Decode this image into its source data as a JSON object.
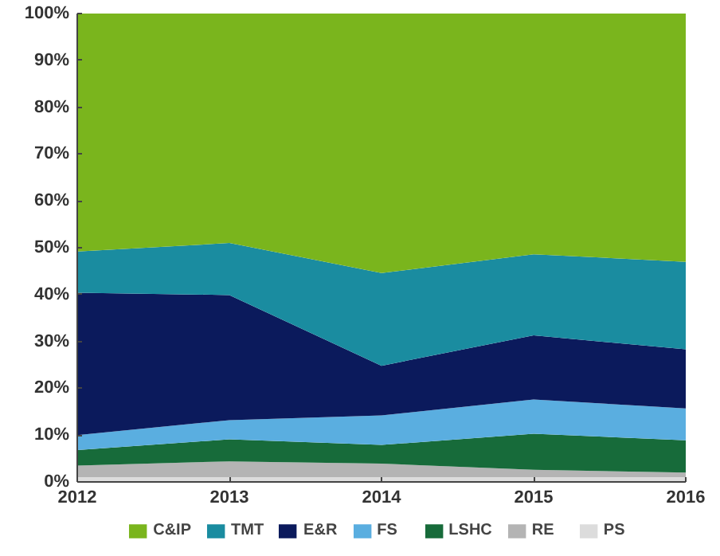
{
  "chart_data": {
    "type": "area",
    "stacked": true,
    "categories": [
      "2012",
      "2013",
      "2014",
      "2015",
      "2016"
    ],
    "ylim": [
      0,
      100
    ],
    "yticks": [
      {
        "value": 0,
        "label": "0%"
      },
      {
        "value": 10,
        "label": "10%"
      },
      {
        "value": 20,
        "label": "20%"
      },
      {
        "value": 30,
        "label": "30%"
      },
      {
        "value": 40,
        "label": "40%"
      },
      {
        "value": 50,
        "label": "50%"
      },
      {
        "value": 60,
        "label": "60%"
      },
      {
        "value": 70,
        "label": "70%"
      },
      {
        "value": 80,
        "label": "80%"
      },
      {
        "value": 90,
        "label": "90%"
      },
      {
        "value": 100,
        "label": "100%"
      }
    ],
    "series": [
      {
        "name": "PS",
        "color": "#dcdcdc",
        "values": [
          1.0,
          1.0,
          1.0,
          1.0,
          1.0
        ]
      },
      {
        "name": "RE",
        "color": "#b4b4b4",
        "values": [
          2.5,
          3.4,
          2.9,
          1.6,
          1.0
        ]
      },
      {
        "name": "LSHC",
        "color": "#176b3a",
        "values": [
          3.3,
          4.7,
          4.0,
          7.7,
          6.9
        ]
      },
      {
        "name": "FS",
        "color": "#5aaee0",
        "values": [
          3.2,
          4.1,
          6.3,
          7.3,
          6.8
        ]
      },
      {
        "name": "E&R",
        "color": "#0b1a5c",
        "values": [
          30.4,
          26.7,
          10.6,
          13.7,
          12.6
        ]
      },
      {
        "name": "TMT",
        "color": "#1a8ca0",
        "values": [
          8.8,
          11.1,
          19.8,
          17.3,
          18.7
        ]
      },
      {
        "name": "C&IP",
        "color": "#7ab51d",
        "values": [
          50.8,
          49.0,
          55.4,
          51.4,
          53.0
        ]
      }
    ],
    "grid": false,
    "legend": "bottom"
  }
}
